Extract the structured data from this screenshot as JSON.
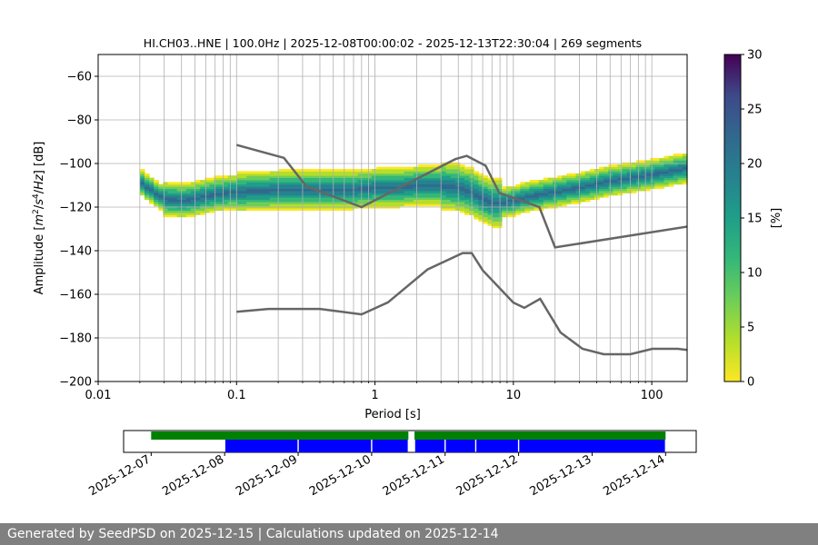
{
  "chart_data": [
    {
      "type": "heatmap",
      "title": "HI.CH03..HNE | 100.0Hz | 2025-12-08T00:00:02 - 2025-12-13T22:30:04 | 269 segments",
      "xlabel": "Period [s]",
      "ylabel_parts": [
        "Amplitude [",
        "m",
        "2",
        "/",
        "s",
        "4",
        "/",
        "Hz",
        "] [dB]"
      ],
      "xscale": "log",
      "xlim": [
        0.01,
        180
      ],
      "ylim": [
        -200,
        -50
      ],
      "xtick_labels": [
        "0.01",
        "0.1",
        "1",
        "10",
        "100"
      ],
      "ytick_values": [
        -200,
        -180,
        -160,
        -140,
        -120,
        -100,
        -80,
        -60
      ],
      "ytick_labels": [
        "−200",
        "−180",
        "−160",
        "−140",
        "−120",
        "−100",
        "−80",
        "−60"
      ],
      "grid": true,
      "colormap": "viridis_r",
      "colorbar": {
        "label": "[%]",
        "range": [
          0,
          30
        ],
        "tick_values": [
          0,
          5,
          10,
          15,
          20,
          25,
          30
        ],
        "tick_labels": [
          "0",
          "5",
          "10",
          "15",
          "20",
          "25",
          "30"
        ]
      },
      "mode_path": [
        [
          0.02,
          -108
        ],
        [
          0.025,
          -113
        ],
        [
          0.03,
          -116
        ],
        [
          0.04,
          -117
        ],
        [
          0.05,
          -116
        ],
        [
          0.07,
          -114
        ],
        [
          0.1,
          -113
        ],
        [
          0.2,
          -112
        ],
        [
          0.4,
          -112
        ],
        [
          0.7,
          -112
        ],
        [
          1,
          -111
        ],
        [
          1.5,
          -111
        ],
        [
          2,
          -110
        ],
        [
          3,
          -110
        ],
        [
          4,
          -111
        ],
        [
          5,
          -113
        ],
        [
          6,
          -116
        ],
        [
          7,
          -118
        ],
        [
          8,
          -118
        ],
        [
          10,
          -117
        ],
        [
          13,
          -115
        ],
        [
          20,
          -113
        ],
        [
          30,
          -111
        ],
        [
          50,
          -108
        ],
        [
          100,
          -105
        ],
        [
          180,
          -102
        ]
      ],
      "series": [
        {
          "name": "NHNM",
          "color": "#666666",
          "x": [
            0.1,
            0.22,
            0.32,
            0.8,
            3.8,
            4.6,
            6.3,
            7.9,
            15.4,
            20,
            354.8
          ],
          "y": [
            -91.5,
            -97.4,
            -110.5,
            -120,
            -98,
            -96.5,
            -101,
            -113.5,
            -120,
            -138.5,
            -126
          ]
        },
        {
          "name": "NLNM",
          "color": "#666666",
          "x": [
            0.1,
            0.17,
            0.4,
            0.8,
            1.24,
            2.4,
            4.3,
            5,
            6,
            10,
            12,
            15.6,
            21.9,
            31.6,
            45,
            70,
            101,
            154,
            328
          ],
          "y": [
            -168,
            -166.7,
            -166.7,
            -169.2,
            -163.7,
            -148.6,
            -141.1,
            -141.1,
            -149,
            -163.8,
            -166.2,
            -162.1,
            -177.5,
            -185,
            -187.5,
            -187.5,
            -185,
            -185,
            -187.5
          ]
        }
      ]
    },
    {
      "type": "timeline",
      "tick_labels": [
        "2025-12-07",
        "2025-12-08",
        "2025-12-09",
        "2025-12-10",
        "2025-12-11",
        "2025-12-12",
        "2025-12-13",
        "2025-12-14"
      ],
      "data_availability": [
        [
          "2025-12-07T00:00",
          "2025-12-10T12:00"
        ],
        [
          "2025-12-10T14:00",
          "2025-12-14T00:00"
        ]
      ],
      "psd_segments": [
        [
          "2025-12-08T00:00",
          "2025-12-09T00:00"
        ],
        [
          "2025-12-09T00:00",
          "2025-12-10T00:00"
        ],
        [
          "2025-12-10T00:00",
          "2025-12-10T12:00"
        ],
        [
          "2025-12-10T14:00",
          "2025-12-11T00:00"
        ],
        [
          "2025-12-11T00:00",
          "2025-12-11T10:00"
        ],
        [
          "2025-12-11T10:00",
          "2025-12-12T00:00"
        ],
        [
          "2025-12-12T00:00",
          "2025-12-14T00:00"
        ]
      ],
      "availability_color": "#008000",
      "psd_color": "#0000ff"
    }
  ],
  "footer": "Generated by SeedPSD on 2025-12-15 | Calculations updated on 2025-12-14"
}
